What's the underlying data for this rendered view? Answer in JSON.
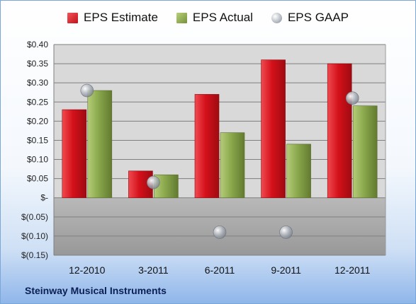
{
  "company_name": "Steinway Musical Instruments",
  "colors": {
    "estimate": "#d4101a",
    "actual": "#8aa84c",
    "gaap": "#b4b9c2",
    "plot_positive_bg": "#d9d9d9",
    "plot_negative_bg": "#a9a9a9"
  },
  "chart_data": {
    "type": "bar",
    "categories": [
      "12-2010",
      "3-2011",
      "6-2011",
      "9-2011",
      "12-2011"
    ],
    "series": [
      {
        "name": "EPS Estimate",
        "type": "bar",
        "values": [
          0.23,
          0.07,
          0.27,
          0.36,
          0.35
        ]
      },
      {
        "name": "EPS Actual",
        "type": "bar",
        "values": [
          0.28,
          0.06,
          0.17,
          0.14,
          0.24
        ]
      },
      {
        "name": "EPS GAAP",
        "type": "scatter",
        "values": [
          0.28,
          0.04,
          -0.09,
          -0.09,
          0.26
        ]
      }
    ],
    "ylim": [
      -0.15,
      0.4
    ],
    "ytick_values": [
      0.4,
      0.35,
      0.3,
      0.25,
      0.2,
      0.15,
      0.1,
      0.05,
      0,
      -0.05,
      -0.1,
      -0.15
    ],
    "ytick_labels": [
      "$0.40",
      "$0.35",
      "$0.30",
      "$0.25",
      "$0.20",
      "$0.15",
      "$0.10",
      "$0.05",
      "$-",
      "$(0.05)",
      "$(0.10)",
      "$(0.15)"
    ],
    "grid": true,
    "legend_position": "top"
  }
}
